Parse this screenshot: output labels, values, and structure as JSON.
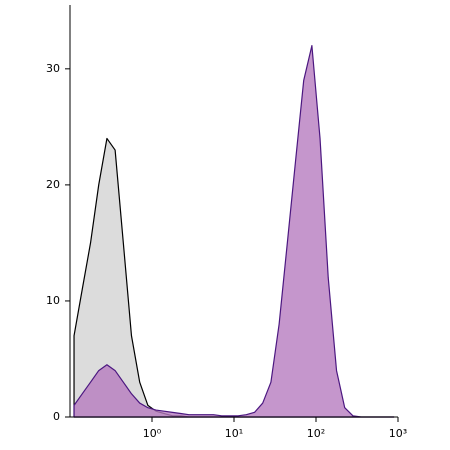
{
  "chart_data": {
    "type": "area",
    "xscale": "log",
    "x": [
      0.112,
      0.141,
      0.178,
      0.224,
      0.282,
      0.355,
      0.447,
      0.562,
      0.708,
      0.891,
      1.12,
      1.41,
      1.78,
      2.24,
      2.82,
      3.55,
      4.47,
      5.62,
      7.08,
      8.91,
      11.2,
      14.1,
      17.8,
      22.4,
      28.2,
      35.5,
      44.7,
      56.2,
      70.8,
      89.1,
      112,
      141,
      178,
      224,
      282,
      355,
      447,
      562,
      708,
      891
    ],
    "series": [
      {
        "color": "#000000",
        "fill": "#dcdcdc",
        "values": [
          7,
          11,
          15,
          20,
          24,
          23,
          15,
          7,
          3,
          1,
          0.5,
          0.3,
          0.1,
          0.1,
          0,
          0,
          0,
          0,
          0,
          0,
          0,
          0,
          0,
          0,
          0,
          0,
          0,
          0,
          0,
          0,
          0,
          0,
          0,
          0,
          0,
          0,
          0,
          0,
          0,
          0
        ]
      },
      {
        "color": "#4b1780",
        "fill": "#b67cbf",
        "values": [
          1,
          2,
          3,
          4,
          4.5,
          4,
          3,
          2,
          1.2,
          0.8,
          0.6,
          0.5,
          0.4,
          0.3,
          0.2,
          0.2,
          0.2,
          0.2,
          0.1,
          0.1,
          0.1,
          0.2,
          0.4,
          1.2,
          3,
          8,
          15,
          22,
          29,
          32,
          24,
          12,
          4,
          0.8,
          0.1,
          0,
          0,
          0,
          0,
          0
        ]
      }
    ],
    "xlim": [
      0.1,
      1000
    ],
    "xticks": [
      {
        "value": 1,
        "label": "10⁰"
      },
      {
        "value": 10,
        "label": "10¹"
      },
      {
        "value": 100,
        "label": "10²"
      },
      {
        "value": 1000,
        "label": "10³"
      }
    ],
    "ylim": [
      0,
      35.5
    ],
    "yticks": [
      0,
      10,
      20,
      30
    ]
  }
}
